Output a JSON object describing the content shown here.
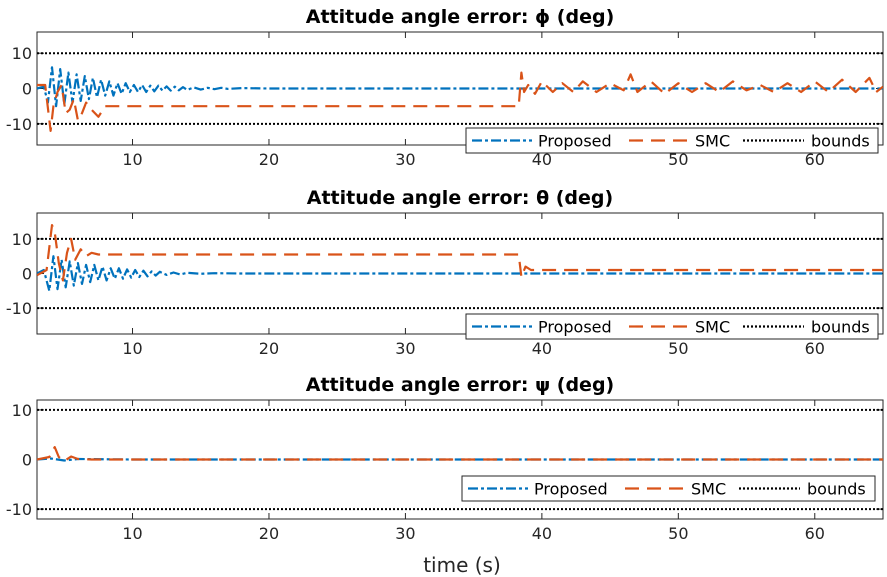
{
  "figure": {
    "xlabel": "time (s)",
    "colors": {
      "proposed": "#0072BD",
      "smc": "#D95319",
      "bounds": "#000000",
      "axis": "#262626"
    }
  },
  "chart_data": [
    {
      "type": "line",
      "title": "Attitude angle error: ϕ (deg)",
      "xlim": [
        3,
        65
      ],
      "ylim": [
        -16,
        16
      ],
      "xticks": [
        10,
        20,
        30,
        40,
        50,
        60
      ],
      "yticks": [
        -10,
        0,
        10
      ],
      "ytick_labels": [
        "-10",
        "0",
        "10"
      ],
      "legend": [
        "Proposed",
        "SMC",
        "bounds"
      ],
      "legend_location": "bottom-right",
      "bounds": [
        10,
        -10
      ],
      "series": [
        {
          "name": "Proposed",
          "key": "proposed",
          "style": "dash-dot",
          "x": [
            3,
            3.5,
            3.8,
            4.1,
            4.4,
            4.7,
            5.0,
            5.3,
            5.6,
            5.9,
            6.2,
            6.5,
            6.8,
            7.1,
            7.4,
            7.7,
            8.0,
            8.3,
            8.6,
            8.9,
            9.2,
            9.5,
            9.8,
            10.1,
            10.4,
            10.7,
            11.0,
            11.3,
            11.6,
            11.9,
            12.2,
            12.5,
            12.8,
            13.1,
            13.4,
            13.7,
            14.0,
            14.5,
            15.0,
            15.5,
            16.0,
            16.5,
            17.0,
            18.0,
            20.0,
            25.0,
            30.0,
            35.0,
            38.4,
            39.0,
            45.0,
            50.0,
            55.0,
            60.0,
            65.0
          ],
          "y": [
            0,
            0.5,
            -4,
            6,
            -5,
            5.5,
            -4.5,
            4.5,
            -4,
            4,
            -3.5,
            3.5,
            -3,
            3,
            -2.5,
            2.5,
            -2,
            2,
            -2,
            1.5,
            -1.5,
            1.5,
            -1,
            1,
            -1,
            1,
            -1,
            0.8,
            -0.8,
            0.8,
            -0.6,
            0.6,
            -0.6,
            0.5,
            -0.5,
            0.4,
            -0.4,
            0.3,
            -0.3,
            0.2,
            -0.2,
            0.2,
            -0.1,
            0.1,
            0,
            0,
            0,
            0,
            0,
            0,
            0,
            0,
            0,
            0,
            0
          ]
        },
        {
          "name": "SMC",
          "key": "smc",
          "style": "dashed",
          "x": [
            3,
            3.6,
            4.0,
            4.2,
            4.5,
            4.8,
            5.1,
            5.4,
            5.7,
            6.0,
            6.3,
            6.6,
            7.0,
            7.5,
            8.0,
            9.0,
            10.0,
            12.0,
            15.0,
            20.0,
            25.0,
            30.0,
            35.0,
            38.3,
            38.5,
            38.7,
            39.0,
            39.5,
            40.0,
            40.8,
            41.5,
            42.3,
            43.0,
            44.0,
            45.0,
            46.0,
            46.5,
            47.0,
            48.0,
            49.0,
            50.0,
            51.0,
            52.0,
            53.0,
            54.0,
            55.0,
            56.0,
            57.0,
            58.0,
            59.0,
            60.0,
            61.0,
            62.0,
            63.0,
            64.0,
            64.5,
            65.0
          ],
          "y": [
            1,
            1,
            -12,
            -5,
            -1,
            1,
            -7,
            -6,
            -3,
            -9,
            -7,
            -4,
            -6,
            -8,
            -5,
            -5,
            -5,
            -5,
            -5,
            -5,
            -5,
            -5,
            -5,
            -5,
            4.5,
            -1,
            1,
            -1.5,
            2,
            -1,
            1.5,
            -1,
            2,
            -1,
            1.5,
            -0.5,
            4,
            -1,
            2,
            -1.5,
            1.5,
            -1,
            1.5,
            -1,
            2,
            -0.5,
            1,
            -1,
            1.5,
            -1,
            2,
            -1,
            2.5,
            -1,
            3,
            -1,
            0.5
          ]
        }
      ]
    },
    {
      "type": "line",
      "title": "Attitude angle error: θ (deg)",
      "xlim": [
        3,
        65
      ],
      "ylim": [
        -17.5,
        17.5
      ],
      "xticks": [
        10,
        20,
        30,
        40,
        50,
        60
      ],
      "yticks": [
        -10,
        0,
        10
      ],
      "ytick_labels": [
        "-10",
        "0",
        "10"
      ],
      "legend": [
        "Proposed",
        "SMC",
        "bounds"
      ],
      "legend_location": "bottom-right",
      "bounds": [
        10,
        -10
      ],
      "series": [
        {
          "name": "Proposed",
          "key": "proposed",
          "style": "dash-dot",
          "x": [
            3,
            3.5,
            3.9,
            4.2,
            4.5,
            4.8,
            5.1,
            5.4,
            5.7,
            6.0,
            6.3,
            6.6,
            6.9,
            7.2,
            7.5,
            7.8,
            8.1,
            8.4,
            8.7,
            9.0,
            9.3,
            9.6,
            9.9,
            10.2,
            10.5,
            10.8,
            11.1,
            11.4,
            11.7,
            12.0,
            12.5,
            13.0,
            13.5,
            14.0,
            15.0,
            16.0,
            18.0,
            20.0,
            30.0,
            38.4,
            40.0,
            50.0,
            60.0,
            65.0
          ],
          "y": [
            0,
            1,
            -5,
            5,
            -4.5,
            4,
            -4,
            3.5,
            -3.5,
            3,
            -3,
            2.5,
            -2.5,
            2.5,
            -2,
            2,
            -2,
            1.5,
            -1.5,
            1.5,
            -1.5,
            1.2,
            -1.2,
            1,
            -1,
            0.8,
            -0.8,
            0.6,
            -0.6,
            0.5,
            -0.4,
            0.3,
            -0.3,
            0.2,
            -0.1,
            0.1,
            0,
            0,
            0,
            0,
            0,
            0,
            0,
            0
          ]
        },
        {
          "name": "SMC",
          "key": "smc",
          "style": "dashed",
          "x": [
            3,
            3.7,
            4.1,
            4.3,
            4.6,
            4.9,
            5.2,
            5.5,
            5.8,
            6.2,
            6.6,
            7.0,
            7.5,
            8.0,
            9.0,
            10.0,
            12.0,
            15.0,
            20.0,
            25.0,
            30.0,
            35.0,
            38.3,
            38.5,
            38.8,
            39.2,
            40.0,
            42.0,
            45.0,
            50.0,
            55.0,
            60.0,
            65.0
          ],
          "y": [
            -0.5,
            1,
            14,
            12,
            3,
            -2,
            6,
            10,
            4,
            7,
            5,
            6,
            5.5,
            5.5,
            5.5,
            5.5,
            5.5,
            5.5,
            5.5,
            5.5,
            5.5,
            5.5,
            5.5,
            -1,
            2,
            1,
            1,
            1,
            1,
            1,
            1,
            1,
            1
          ]
        }
      ]
    },
    {
      "type": "line",
      "title": "Attitude angle error: ψ (deg)",
      "xlim": [
        3,
        65
      ],
      "ylim": [
        -12,
        12
      ],
      "xticks": [
        10,
        20,
        30,
        40,
        50,
        60
      ],
      "yticks": [
        -10,
        0,
        10
      ],
      "ytick_labels": [
        "-10",
        "0",
        "10"
      ],
      "legend": [
        "Proposed",
        "SMC",
        "bounds"
      ],
      "legend_location": "bottom-right",
      "bounds": [
        10,
        -10
      ],
      "xlabel": "time (s)",
      "series": [
        {
          "name": "Proposed",
          "key": "proposed",
          "style": "dash-dot",
          "x": [
            3,
            4,
            5,
            6,
            10,
            20,
            30,
            40,
            50,
            60,
            65
          ],
          "y": [
            0,
            0.2,
            -0.2,
            0.1,
            0,
            0,
            0,
            0,
            0,
            0,
            0
          ]
        },
        {
          "name": "SMC",
          "key": "smc",
          "style": "dashed",
          "x": [
            3,
            3.9,
            4.3,
            4.6,
            5.0,
            5.5,
            6.0,
            7.0,
            10.0,
            20.0,
            30.0,
            40.0,
            50.0,
            60.0,
            65.0
          ],
          "y": [
            0,
            0.5,
            2.5,
            0.5,
            -0.3,
            0.6,
            0.1,
            0,
            0,
            0,
            0,
            0,
            0,
            0,
            0
          ]
        }
      ]
    }
  ]
}
